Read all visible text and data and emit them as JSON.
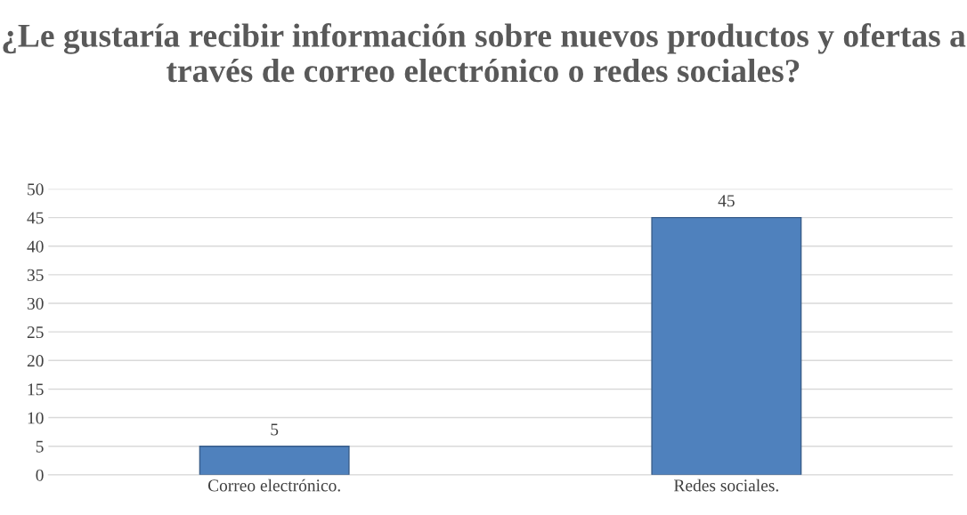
{
  "chart_data": {
    "type": "bar",
    "title": "¿Le gustaría recibir información sobre nuevos productos y ofertas a través de correo electrónico o redes sociales?",
    "categories": [
      "Correo electrónico.",
      "Redes sociales."
    ],
    "values": [
      5,
      45
    ],
    "color": "#4f81bd",
    "ylim": [
      0,
      50
    ],
    "yticks": [
      0,
      5,
      10,
      15,
      20,
      25,
      30,
      35,
      40,
      45,
      50
    ],
    "grid": "y",
    "data_labels": true
  }
}
